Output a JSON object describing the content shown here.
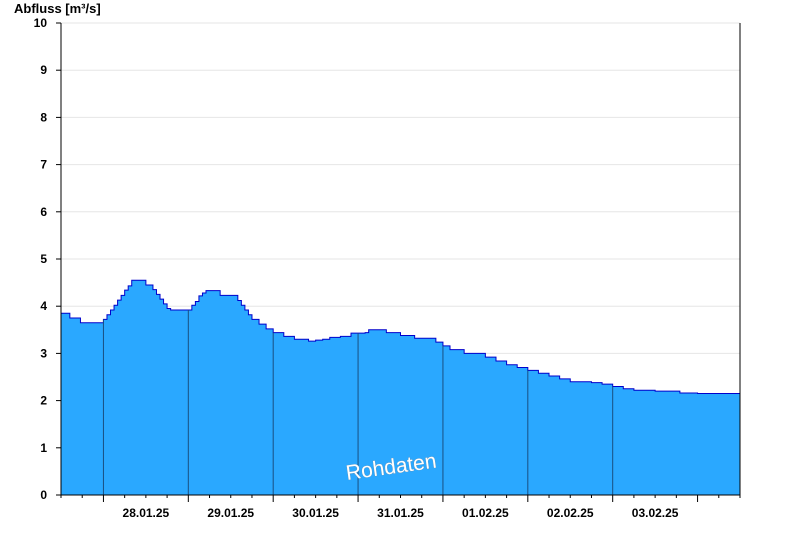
{
  "chart_data": {
    "type": "area",
    "ylabel": "Abfluss [m³/s]",
    "ylim": [
      0,
      10
    ],
    "yticks": [
      0,
      1,
      2,
      3,
      4,
      5,
      6,
      7,
      8,
      9,
      10
    ],
    "xlim": [
      "27.01.25 12:00",
      "04.02.25 00:00"
    ],
    "day_boundaries": [
      "28.01.25 12:00",
      "29.01.25 12:00",
      "30.01.25 12:00",
      "31.01.25 12:00",
      "01.02.25 12:00",
      "02.02.25 12:00",
      "03.02.25 12:00"
    ],
    "xtick_labels": [
      "28.01.25",
      "29.01.25",
      "30.01.25",
      "31.01.25",
      "01.02.25",
      "02.02.25",
      "03.02.25"
    ],
    "grid": true,
    "watermark": "Rohdaten",
    "colors": {
      "fill": "#2aa8ff",
      "line": "#0000cc",
      "grid": "#e6e6e6",
      "axis": "#000000"
    },
    "x_unit": "hours since 27.01.25 12:00",
    "x": [
      0,
      2,
      2.5,
      5,
      5.5,
      8,
      11,
      12,
      13,
      14,
      15,
      16,
      17,
      18,
      19,
      20,
      21,
      23,
      24,
      26,
      27,
      28,
      29,
      30,
      31,
      33,
      35,
      37,
      38,
      39,
      40,
      41,
      42,
      44,
      45,
      48,
      50,
      51,
      52,
      53,
      54,
      56,
      58,
      60,
      63,
      66,
      70,
      72,
      74,
      76,
      79,
      82,
      86,
      87,
      92,
      96,
      100,
      106,
      108,
      110,
      114,
      120,
      123,
      126,
      129,
      132,
      135,
      138,
      141,
      144,
      150,
      153,
      156,
      159,
      162,
      168,
      171,
      175,
      180,
      186,
      192
    ],
    "y": [
      3.85,
      3.85,
      3.75,
      3.75,
      3.65,
      3.65,
      3.65,
      3.72,
      3.82,
      3.92,
      4.02,
      4.13,
      4.23,
      4.34,
      4.43,
      4.55,
      4.55,
      4.55,
      4.45,
      4.35,
      4.25,
      4.15,
      4.05,
      3.95,
      3.92,
      3.92,
      3.92,
      4.02,
      4.1,
      4.22,
      4.28,
      4.33,
      4.33,
      4.33,
      4.23,
      4.23,
      4.12,
      4.02,
      3.92,
      3.82,
      3.72,
      3.62,
      3.52,
      3.44,
      3.36,
      3.3,
      3.26,
      3.28,
      3.3,
      3.34,
      3.36,
      3.43,
      3.44,
      3.5,
      3.44,
      3.38,
      3.32,
      3.24,
      3.16,
      3.08,
      3.0,
      2.92,
      2.84,
      2.76,
      2.7,
      2.64,
      2.58,
      2.52,
      2.46,
      2.4,
      2.38,
      2.35,
      2.3,
      2.25,
      2.22,
      2.2,
      2.2,
      2.16,
      2.15,
      2.15,
      2.15
    ]
  }
}
